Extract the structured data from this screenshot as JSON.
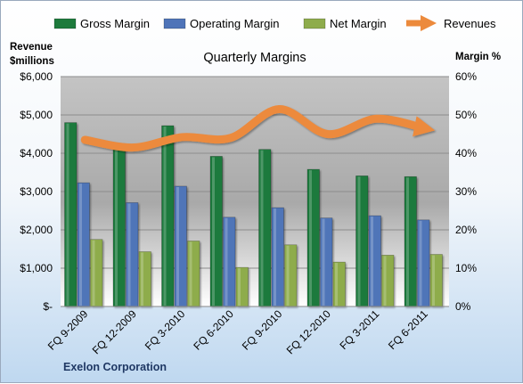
{
  "chart_data": {
    "type": "bar",
    "title": "Quarterly Margins",
    "categories": [
      "FQ 9-2009",
      "FQ 12-2009",
      "FQ 3-2010",
      "FQ 6-2010",
      "FQ 9-2010",
      "FQ 12-2010",
      "FQ 3-2011",
      "FQ 6-2011"
    ],
    "series": [
      {
        "name": "Gross Margin",
        "axis": "right",
        "kind": "bar",
        "color": "#1e7a3c",
        "values": [
          48,
          42.5,
          47.2,
          39.2,
          41,
          35.8,
          34.1,
          33.9
        ]
      },
      {
        "name": "Operating Margin",
        "axis": "right",
        "kind": "bar",
        "color": "#4f74b8",
        "values": [
          32.3,
          27.1,
          31.4,
          23.3,
          25.8,
          23.1,
          23.7,
          22.6
        ]
      },
      {
        "name": "Net Margin",
        "axis": "right",
        "kind": "bar",
        "color": "#8eac4c",
        "values": [
          17.5,
          14.3,
          17.1,
          10.2,
          16.1,
          11.6,
          13.4,
          13.6
        ]
      },
      {
        "name": "Revenues",
        "axis": "left",
        "kind": "line",
        "color": "#ec8a3c",
        "values": [
          4350,
          4150,
          4420,
          4400,
          5150,
          4500,
          4900,
          4650
        ]
      }
    ],
    "y_left": {
      "label_line1": "Revenue",
      "label_line2": "$millions",
      "range": [
        0,
        6000
      ],
      "ticks": [
        {
          "v": 0,
          "t": "$-"
        },
        {
          "v": 1000,
          "t": "$1,000"
        },
        {
          "v": 2000,
          "t": "$2,000"
        },
        {
          "v": 3000,
          "t": "$3,000"
        },
        {
          "v": 4000,
          "t": "$4,000"
        },
        {
          "v": 5000,
          "t": "$5,000"
        },
        {
          "v": 6000,
          "t": "$6,000"
        }
      ]
    },
    "y_right": {
      "label": "Margin %",
      "range": [
        0,
        60
      ],
      "ticks": [
        {
          "v": 0,
          "t": "0%"
        },
        {
          "v": 10,
          "t": "10%"
        },
        {
          "v": 20,
          "t": "20%"
        },
        {
          "v": 30,
          "t": "30%"
        },
        {
          "v": 40,
          "t": "40%"
        },
        {
          "v": 50,
          "t": "50%"
        },
        {
          "v": 60,
          "t": "60%"
        }
      ]
    },
    "grid": true,
    "legend_position": "top",
    "company": "Exelon Corporation"
  }
}
